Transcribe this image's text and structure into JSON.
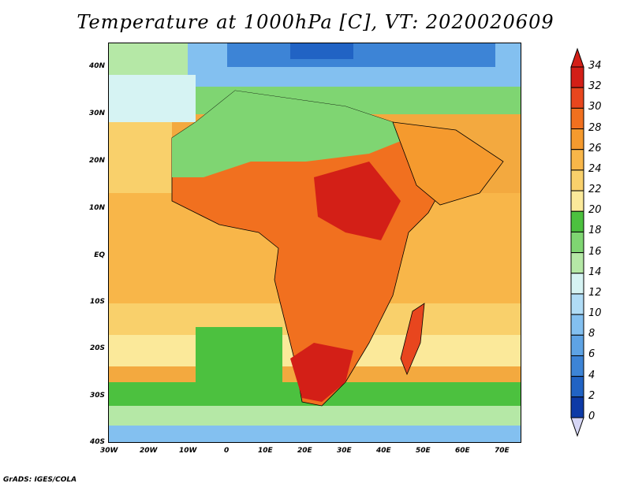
{
  "title": "Temperature at 1000hPa [C], VT: 2020020609",
  "credit": "GrADS: IGES/COLA",
  "lat_labels": [
    "40N",
    "30N",
    "20N",
    "10N",
    "EQ",
    "10S",
    "20S",
    "30S",
    "40S"
  ],
  "lon_labels": [
    "30W",
    "20W",
    "10W",
    "0",
    "10E",
    "20E",
    "30E",
    "40E",
    "50E",
    "60E",
    "70E"
  ],
  "colorbar": {
    "levels": [
      "34",
      "32",
      "30",
      "28",
      "26",
      "24",
      "22",
      "20",
      "18",
      "16",
      "14",
      "12",
      "10",
      "8",
      "6",
      "4",
      "2",
      "0"
    ],
    "colors": [
      "#d31f17",
      "#e8461e",
      "#f1701f",
      "#f59a2e",
      "#f8b649",
      "#f9d06b",
      "#fbe99a",
      "#4cc13f",
      "#7fd572",
      "#b5e8a6",
      "#d6f3f3",
      "#b0dcf6",
      "#83c0f0",
      "#5ea3e4",
      "#3d84d6",
      "#2163c4",
      "#0d3aa6",
      "#0a1c6e"
    ]
  }
}
